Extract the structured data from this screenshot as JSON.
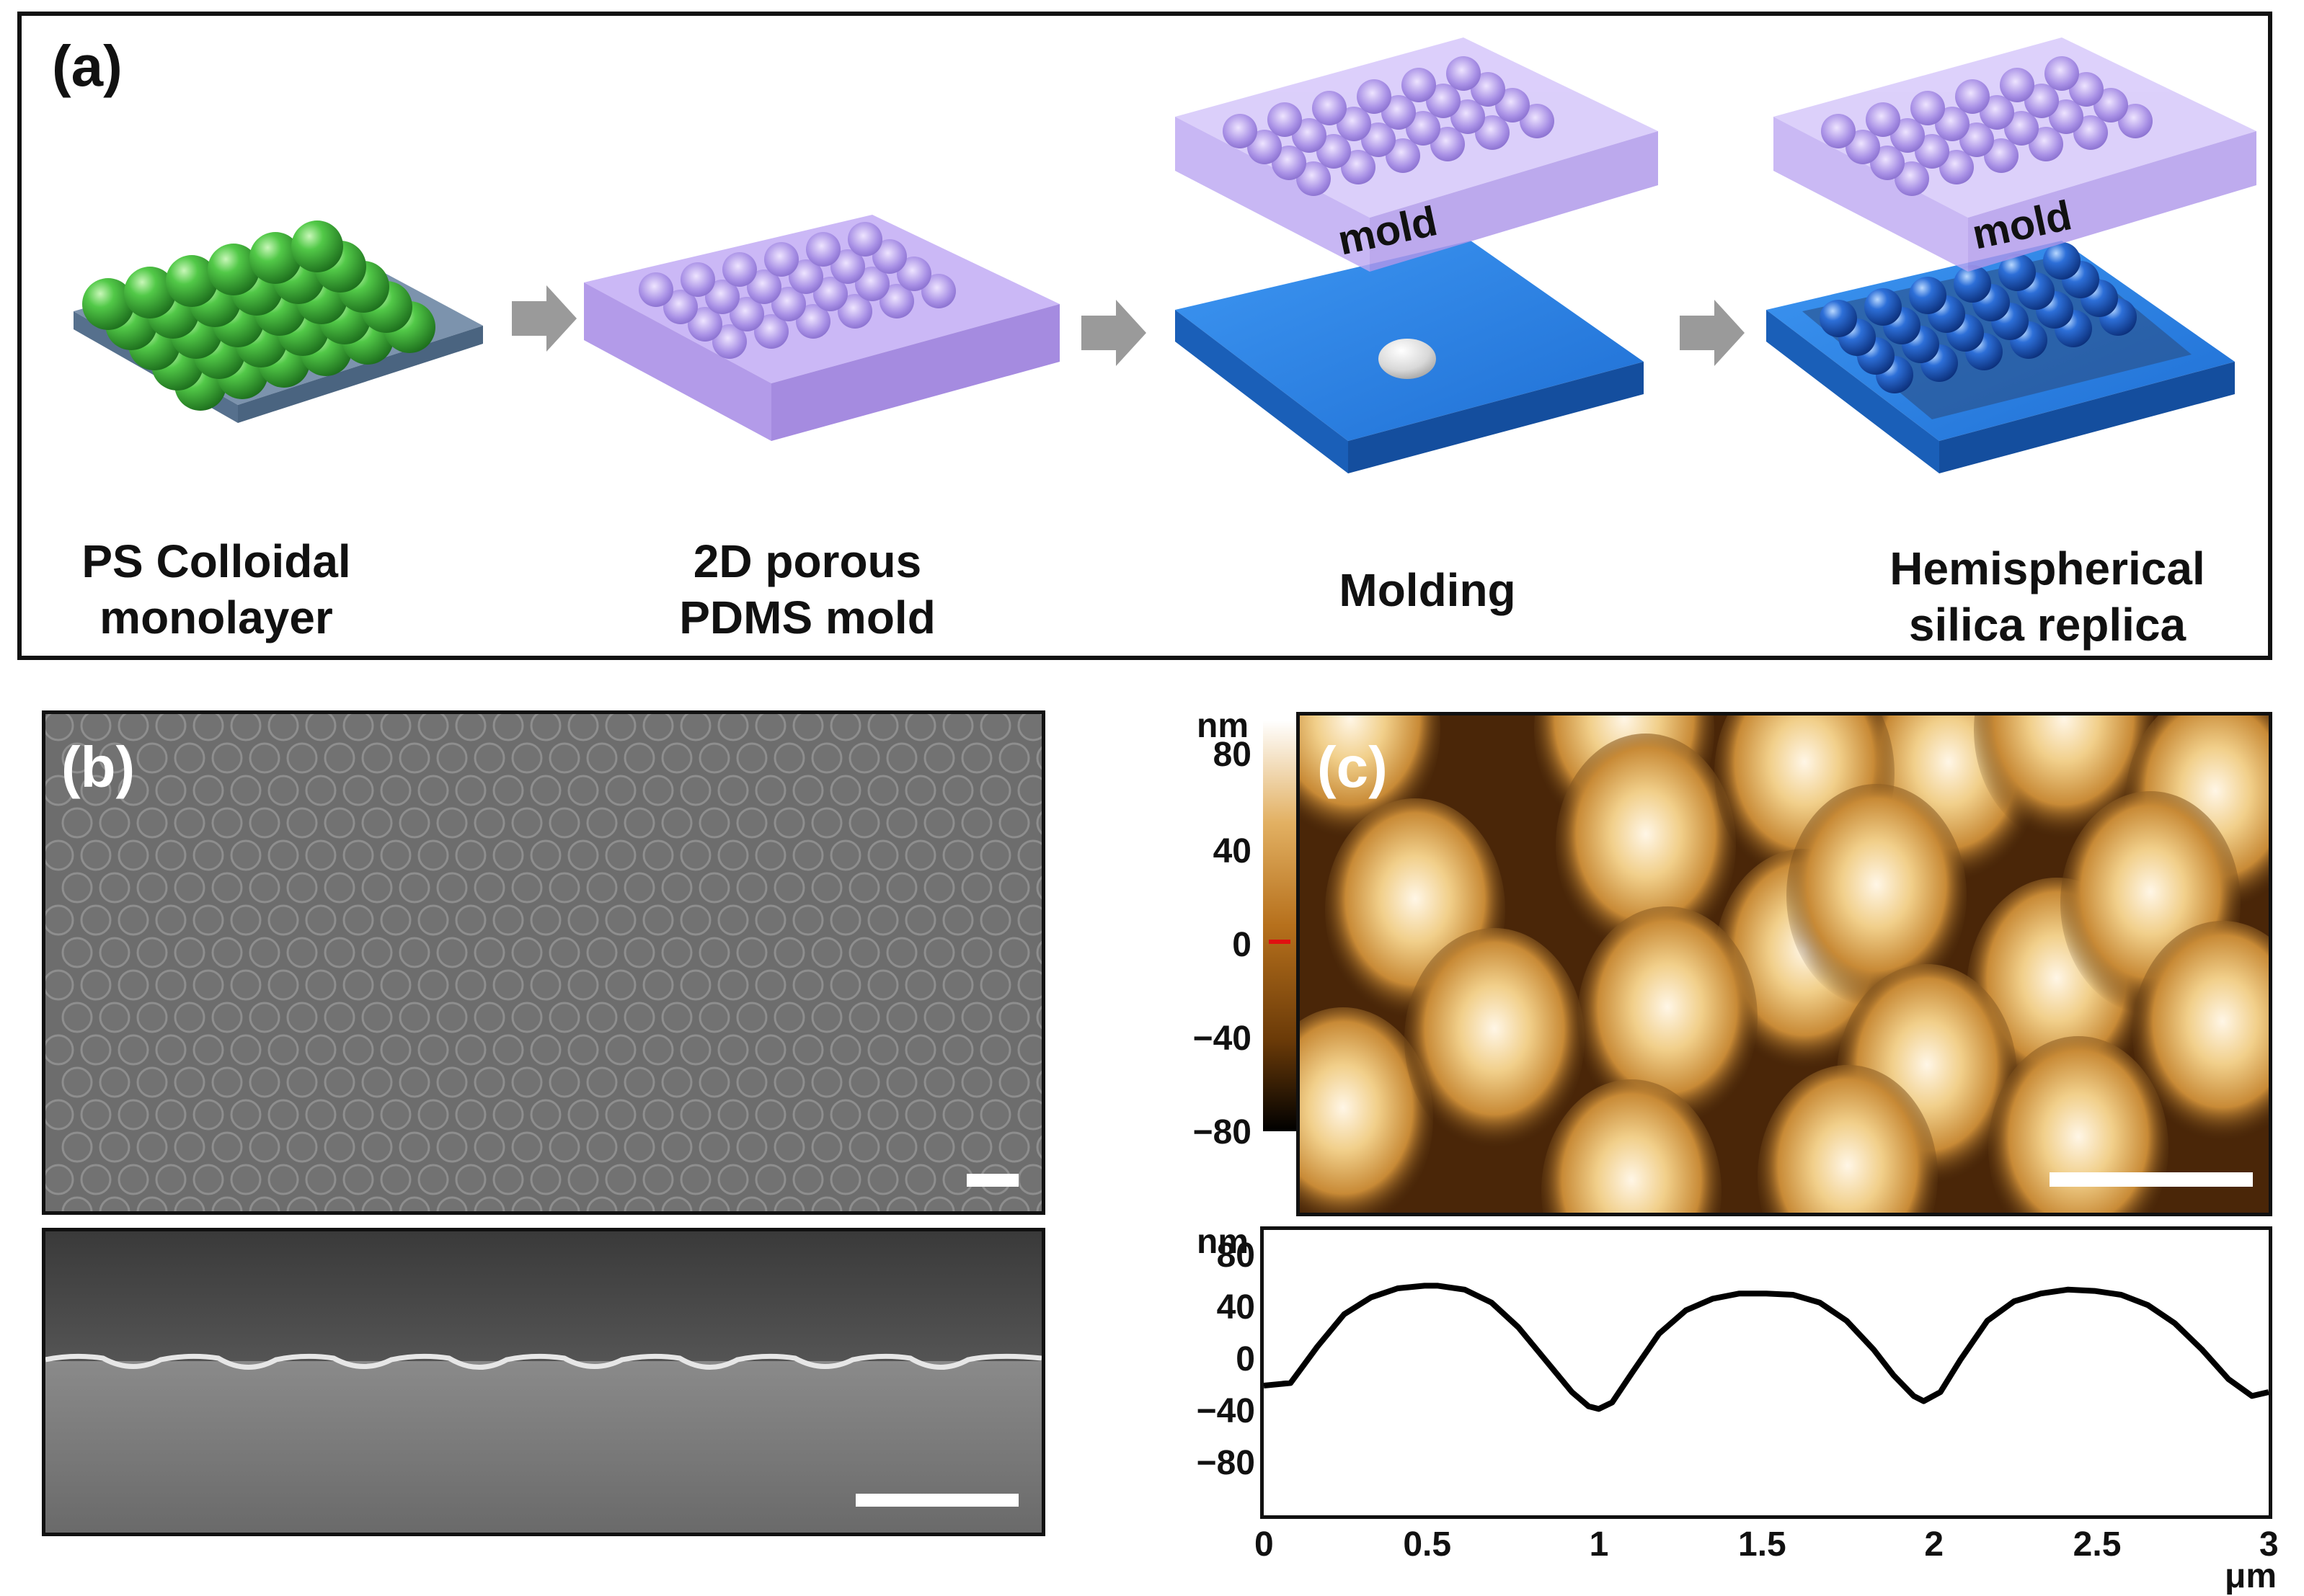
{
  "panel_a": {
    "label": "(a)",
    "steps": [
      {
        "line1": "PS Colloidal",
        "line2": "monolayer"
      },
      {
        "line1": "2D porous",
        "line2": "PDMS mold"
      },
      {
        "line1": "Molding",
        "line2": ""
      },
      {
        "line1": "Hemispherical",
        "line2": "silica replica"
      }
    ],
    "mold_label": "mold",
    "colors": {
      "spheres": "#3bb83b",
      "pdms": "#c6b2f3",
      "substrate": "#2f86e6",
      "replica": "#1f5cc4",
      "arrow": "#9a9a9a"
    }
  },
  "panel_b": {
    "label": "(b)",
    "colors": {
      "sem_bg": "#6b6b6b",
      "sem_edge": "#8e8e8e"
    }
  },
  "panel_c": {
    "label": "(c)",
    "colorbar": {
      "unit": "nm",
      "ticks": [
        "80",
        "40",
        "0",
        "−40",
        "−80"
      ],
      "colors": [
        "#ffffff",
        "#e2b062",
        "#b6701c",
        "#6a3a08",
        "#000000"
      ]
    },
    "chart_data": {
      "type": "line",
      "title": "",
      "xlabel": "μm",
      "ylabel": "nm",
      "xlim": [
        0,
        3
      ],
      "ylim": [
        -120,
        100
      ],
      "x_ticks": [
        "0",
        "0.5",
        "1",
        "1.5",
        "2",
        "2.5",
        "3"
      ],
      "y_ticks": [
        "80",
        "40",
        "0",
        "−40",
        "−80"
      ],
      "series": [
        {
          "x": [
            0,
            0.08,
            0.16,
            0.24,
            0.32,
            0.4,
            0.48,
            0.52,
            0.6,
            0.68,
            0.76,
            0.84,
            0.92,
            0.97,
            1.0,
            1.04,
            1.1,
            1.18,
            1.26,
            1.34,
            1.42,
            1.5,
            1.58,
            1.66,
            1.74,
            1.82,
            1.88,
            1.94,
            1.97,
            2.02,
            2.08,
            2.16,
            2.24,
            2.32,
            2.4,
            2.48,
            2.56,
            2.64,
            2.72,
            2.8,
            2.88,
            2.95,
            3.0
          ],
          "y": [
            -20,
            -18,
            10,
            35,
            48,
            55,
            57,
            57,
            54,
            44,
            25,
            0,
            -25,
            -36,
            -38,
            -33,
            -10,
            20,
            38,
            47,
            51,
            51,
            50,
            44,
            30,
            8,
            -12,
            -28,
            -32,
            -25,
            0,
            30,
            45,
            51,
            54,
            53,
            50,
            42,
            28,
            8,
            -15,
            -28,
            -25
          ]
        }
      ]
    }
  }
}
